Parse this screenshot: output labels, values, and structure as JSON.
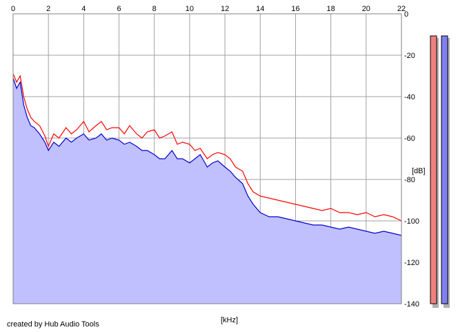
{
  "chart_data": {
    "type": "area",
    "xlabel": "[kHz]",
    "ylabel": "[dB]",
    "xlim": [
      0,
      22
    ],
    "ylim": [
      -140,
      0
    ],
    "x_ticks": [
      0,
      2,
      4,
      6,
      8,
      10,
      12,
      14,
      16,
      18,
      20,
      22
    ],
    "x_tick_labels": [
      "0",
      "2",
      "4",
      "6",
      "8",
      "10",
      "12",
      "14",
      "16",
      "18",
      "20",
      "22"
    ],
    "y_ticks": [
      0,
      -20,
      -40,
      -60,
      -80,
      -100,
      -120,
      -140
    ],
    "y_tick_labels": [
      "0",
      "-20",
      "-40",
      "-60",
      "-80",
      "-100",
      "-120",
      "-140"
    ],
    "grid": true,
    "series": [
      {
        "color": "#ff0000",
        "x": [
          0,
          0.2,
          0.4,
          0.6,
          0.8,
          1.0,
          1.2,
          1.5,
          1.8,
          2.0,
          2.3,
          2.6,
          3.0,
          3.3,
          3.6,
          4.0,
          4.3,
          4.7,
          5.0,
          5.3,
          5.6,
          6.0,
          6.3,
          6.6,
          7.0,
          7.3,
          7.6,
          8.0,
          8.3,
          8.6,
          9.0,
          9.3,
          9.6,
          10.0,
          10.3,
          10.6,
          11.0,
          11.3,
          11.6,
          12.0,
          12.3,
          12.6,
          13.0,
          13.3,
          13.6,
          14.0,
          14.5,
          15.0,
          15.5,
          16.0,
          16.5,
          17.0,
          17.5,
          18.0,
          18.5,
          19.0,
          19.5,
          20.0,
          20.5,
          21.0,
          21.5,
          22.0
        ],
        "y": [
          -29,
          -33,
          -30,
          -40,
          -46,
          -50,
          -52,
          -54,
          -59,
          -64,
          -58,
          -60,
          -55,
          -58,
          -56,
          -52,
          -57,
          -54,
          -52,
          -56,
          -55,
          -55,
          -58,
          -54,
          -58,
          -60,
          -57,
          -56,
          -60,
          -59,
          -57,
          -63,
          -62,
          -63,
          -66,
          -65,
          -70,
          -68,
          -67,
          -68,
          -70,
          -74,
          -76,
          -82,
          -86,
          -88,
          -89,
          -90,
          -91,
          -92,
          -93,
          -94,
          -95,
          -94,
          -96,
          -96,
          -97,
          -96,
          -98,
          -97,
          -98,
          -100
        ]
      },
      {
        "color": "#0000cc",
        "x": [
          0,
          0.2,
          0.4,
          0.6,
          0.8,
          1.0,
          1.2,
          1.5,
          1.8,
          2.0,
          2.3,
          2.6,
          3.0,
          3.3,
          3.6,
          4.0,
          4.3,
          4.7,
          5.0,
          5.3,
          5.6,
          6.0,
          6.3,
          6.6,
          7.0,
          7.3,
          7.6,
          8.0,
          8.3,
          8.6,
          9.0,
          9.3,
          9.6,
          10.0,
          10.3,
          10.6,
          11.0,
          11.3,
          11.6,
          12.0,
          12.3,
          12.6,
          13.0,
          13.3,
          13.6,
          14.0,
          14.5,
          15.0,
          15.5,
          16.0,
          16.5,
          17.0,
          17.5,
          18.0,
          18.5,
          19.0,
          19.5,
          20.0,
          20.5,
          21.0,
          21.5,
          22.0
        ],
        "y": [
          -31,
          -36,
          -33,
          -44,
          -50,
          -54,
          -55,
          -58,
          -62,
          -66,
          -62,
          -64,
          -60,
          -62,
          -60,
          -58,
          -61,
          -60,
          -58,
          -61,
          -60,
          -61,
          -63,
          -62,
          -64,
          -66,
          -66,
          -68,
          -70,
          -70,
          -66,
          -70,
          -70,
          -72,
          -70,
          -68,
          -74,
          -72,
          -71,
          -74,
          -76,
          -79,
          -82,
          -88,
          -92,
          -96,
          -98,
          -98,
          -99,
          -100,
          -101,
          -102,
          -102,
          -103,
          -104,
          -103,
          -104,
          -105,
          -106,
          -105,
          -106,
          -107
        ]
      }
    ],
    "level_meters": [
      {
        "color": "#f08080",
        "value": 0
      },
      {
        "color": "#8080f0",
        "value": 0
      }
    ],
    "credit": "created by Hub Audio Tools"
  }
}
